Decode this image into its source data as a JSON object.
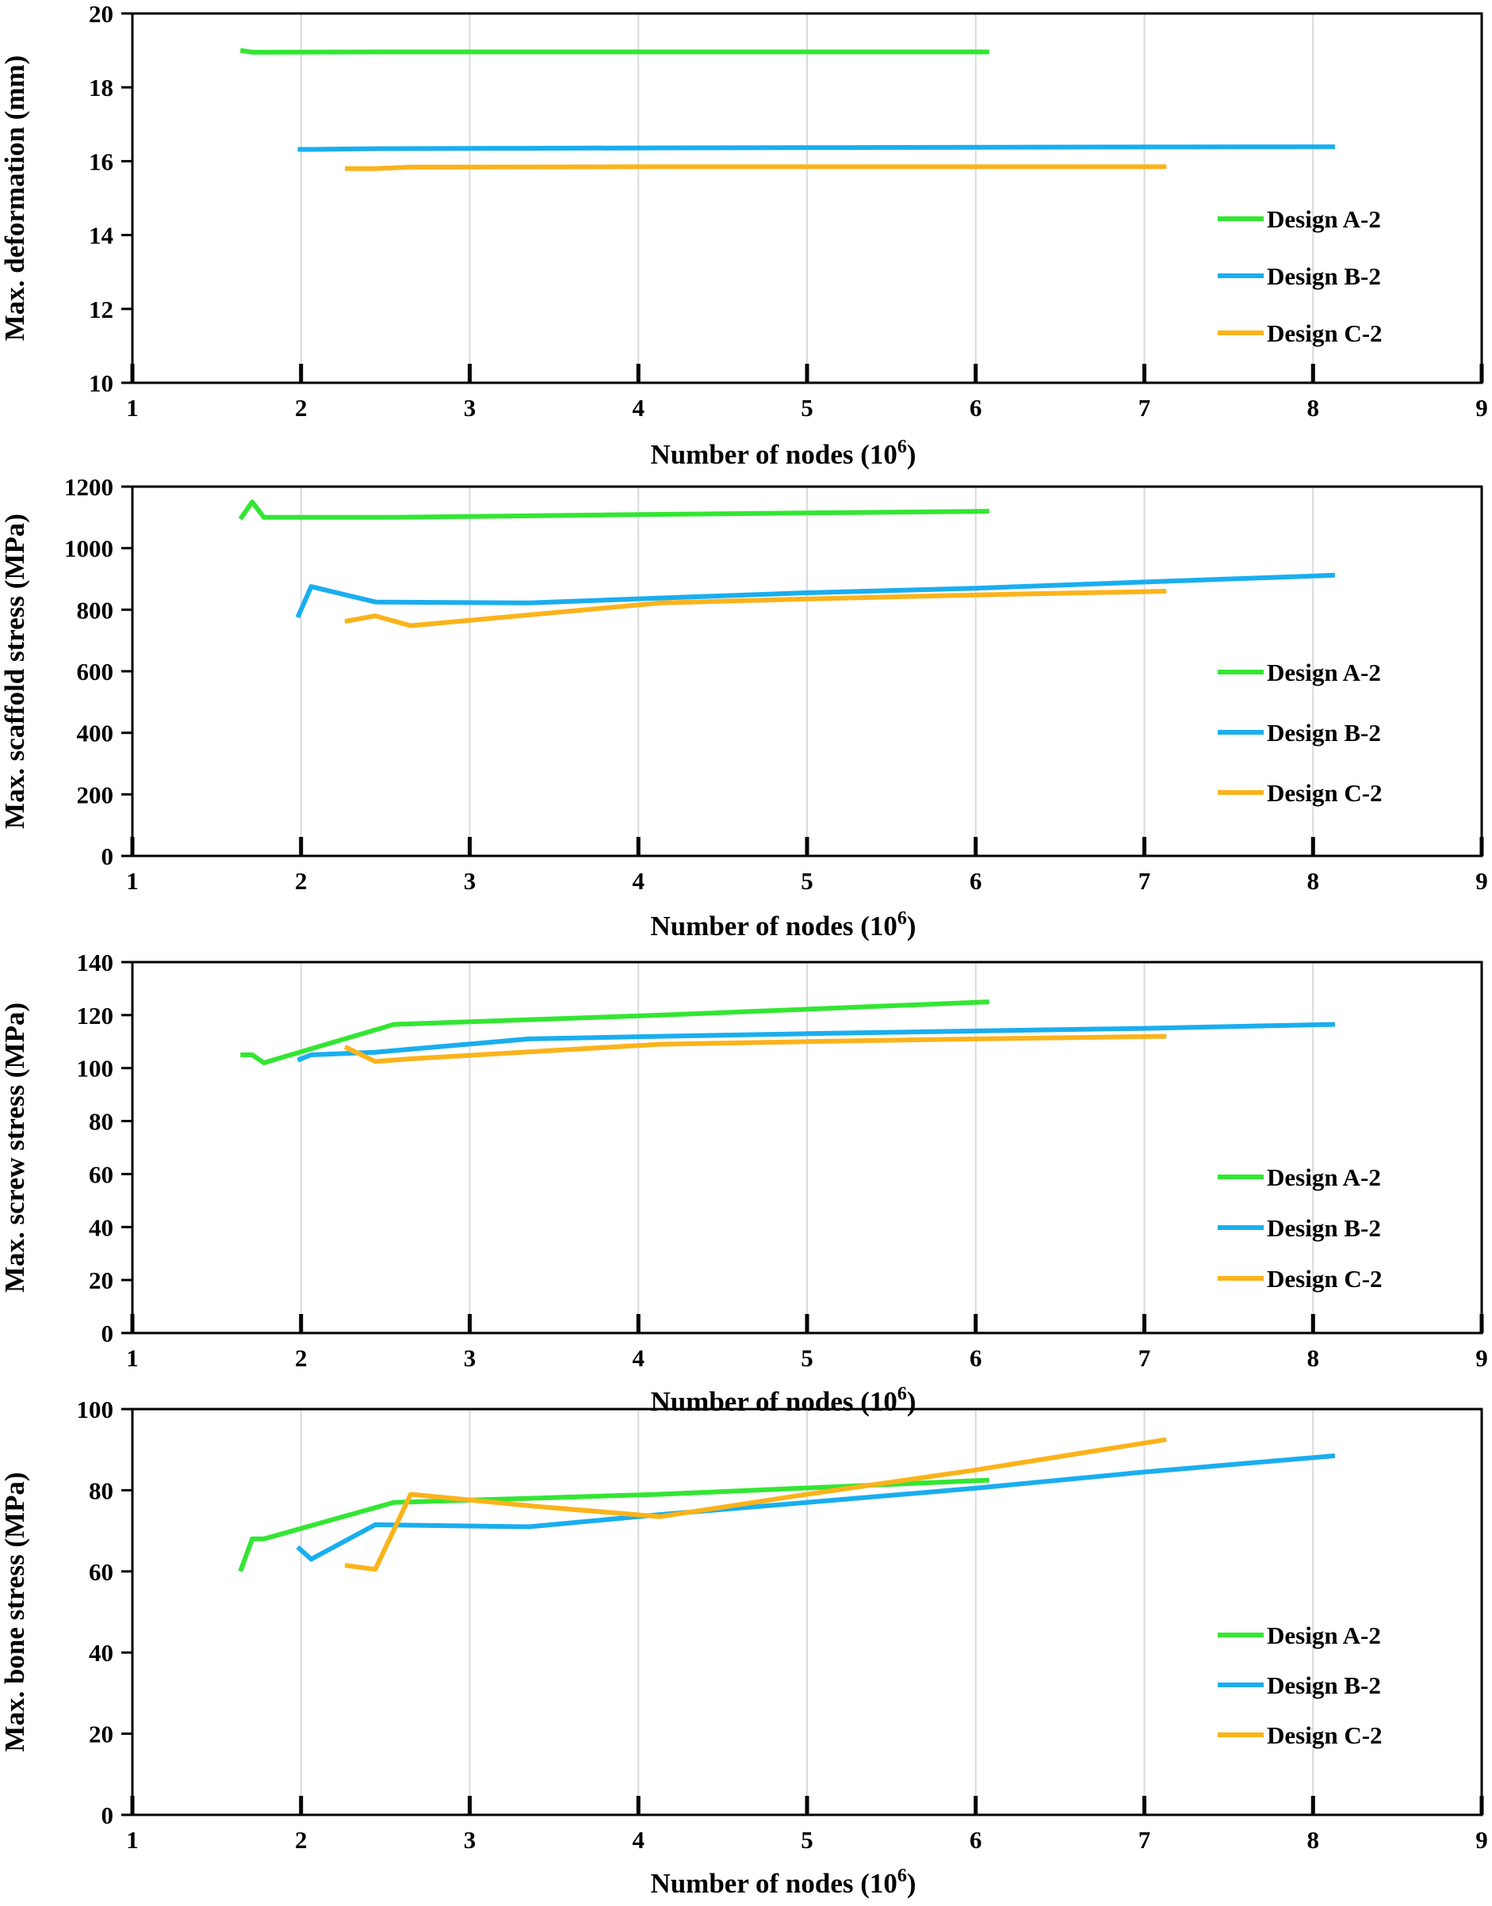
{
  "figure": {
    "series_colors": {
      "Design A-2": "#33e633",
      "Design B-2": "#1aaeef",
      "Design C-2": "#fbb31b"
    }
  },
  "chart_data": [
    {
      "type": "line",
      "id": "deformation",
      "title": "",
      "xlabel": "Number of nodes (10",
      "xlabel_sup": "6",
      "xlabel_end": ")",
      "ylabel": "Max. deformation (mm)",
      "xlim": [
        1,
        9
      ],
      "ylim": [
        10,
        20
      ],
      "xticks": [
        1,
        2,
        3,
        4,
        5,
        6,
        7,
        8,
        9
      ],
      "yticks": [
        10,
        12,
        14,
        16,
        18,
        20
      ],
      "legend": [
        "Design A-2",
        "Design B-2",
        "Design C-2"
      ],
      "legend_position": "right",
      "series": [
        {
          "name": "Design A-2",
          "x": [
            1.64,
            1.71,
            1.78,
            2.55,
            3.4,
            4.2,
            5.0,
            6.08
          ],
          "y": [
            19.0,
            18.95,
            18.95,
            18.96,
            18.96,
            18.96,
            18.96,
            18.96
          ]
        },
        {
          "name": "Design B-2",
          "x": [
            1.98,
            2.06,
            2.44,
            3.35,
            4.13,
            5.2,
            6.2,
            8.13
          ],
          "y": [
            16.32,
            16.32,
            16.34,
            16.35,
            16.36,
            16.37,
            16.38,
            16.39
          ]
        },
        {
          "name": "Design C-2",
          "x": [
            2.26,
            2.44,
            2.65,
            4.13,
            5.0,
            6.0,
            7.13
          ],
          "y": [
            15.8,
            15.8,
            15.84,
            15.85,
            15.85,
            15.85,
            15.85
          ]
        }
      ]
    },
    {
      "type": "line",
      "id": "scaffold",
      "title": "",
      "xlabel": "Number of nodes (10",
      "xlabel_sup": "6",
      "xlabel_end": ")",
      "ylabel": "Max. scaffold stress (MPa)",
      "xlim": [
        1,
        9
      ],
      "ylim": [
        0,
        1200
      ],
      "xticks": [
        1,
        2,
        3,
        4,
        5,
        6,
        7,
        8,
        9
      ],
      "yticks": [
        0,
        200,
        400,
        600,
        800,
        1000,
        1200
      ],
      "legend": [
        "Design A-2",
        "Design B-2",
        "Design C-2"
      ],
      "legend_position": "right",
      "series": [
        {
          "name": "Design A-2",
          "x": [
            1.64,
            1.71,
            1.78,
            2.55,
            4.13,
            6.08
          ],
          "y": [
            1095,
            1150,
            1100,
            1100,
            1110,
            1120
          ]
        },
        {
          "name": "Design B-2",
          "x": [
            1.98,
            2.06,
            2.44,
            3.35,
            4.13,
            5.0,
            6.0,
            7.0,
            8.13
          ],
          "y": [
            775,
            875,
            825,
            822,
            838,
            855,
            870,
            890,
            912
          ]
        },
        {
          "name": "Design C-2",
          "x": [
            2.26,
            2.44,
            2.65,
            4.13,
            5.0,
            6.0,
            7.13
          ],
          "y": [
            762,
            780,
            748,
            822,
            835,
            848,
            860
          ]
        }
      ]
    },
    {
      "type": "line",
      "id": "screw",
      "title": "",
      "xlabel": "Number of nodes (10",
      "xlabel_sup": "6",
      "xlabel_end": ")",
      "ylabel": "Max. screw stress (MPa)",
      "xlim": [
        1,
        9
      ],
      "ylim": [
        0,
        140
      ],
      "xticks": [
        1,
        2,
        3,
        4,
        5,
        6,
        7,
        8,
        9
      ],
      "yticks": [
        0,
        20,
        40,
        60,
        80,
        100,
        120,
        140
      ],
      "legend": [
        "Design A-2",
        "Design B-2",
        "Design C-2"
      ],
      "legend_position": "right",
      "series": [
        {
          "name": "Design A-2",
          "x": [
            1.64,
            1.71,
            1.78,
            2.55,
            4.13,
            6.08
          ],
          "y": [
            105,
            105,
            102,
            116.5,
            120,
            125
          ]
        },
        {
          "name": "Design B-2",
          "x": [
            1.98,
            2.06,
            2.44,
            3.35,
            4.13,
            5.0,
            6.0,
            7.0,
            8.13
          ],
          "y": [
            103,
            105,
            106,
            111,
            112,
            113,
            114,
            115,
            116.5
          ]
        },
        {
          "name": "Design C-2",
          "x": [
            2.26,
            2.44,
            2.65,
            4.13,
            5.0,
            6.0,
            7.13
          ],
          "y": [
            108,
            102.5,
            103.5,
            109,
            110,
            111,
            112
          ]
        }
      ]
    },
    {
      "type": "line",
      "id": "bone",
      "title": "",
      "xlabel": "Number of nodes (10",
      "xlabel_sup": "6",
      "xlabel_end": ")",
      "ylabel": "Max. bone stress (MPa)",
      "xlim": [
        1,
        9
      ],
      "ylim": [
        0,
        100
      ],
      "xticks": [
        1,
        2,
        3,
        4,
        5,
        6,
        7,
        8,
        9
      ],
      "yticks": [
        0,
        20,
        40,
        60,
        80,
        100
      ],
      "legend": [
        "Design A-2",
        "Design B-2",
        "Design C-2"
      ],
      "legend_position": "right",
      "series": [
        {
          "name": "Design A-2",
          "x": [
            1.64,
            1.71,
            1.78,
            2.55,
            4.13,
            6.08
          ],
          "y": [
            60,
            68,
            68,
            77,
            79,
            82.5
          ]
        },
        {
          "name": "Design B-2",
          "x": [
            1.98,
            2.06,
            2.44,
            3.35,
            4.13,
            5.0,
            6.0,
            7.0,
            8.13
          ],
          "y": [
            66,
            63,
            71.5,
            71,
            74,
            77,
            80.5,
            84.5,
            88.5
          ]
        },
        {
          "name": "Design C-2",
          "x": [
            2.26,
            2.44,
            2.65,
            3.4,
            4.13,
            5.0,
            6.0,
            7.13
          ],
          "y": [
            61.5,
            60.5,
            79,
            76,
            73.5,
            79,
            85,
            92.5
          ]
        }
      ]
    }
  ]
}
